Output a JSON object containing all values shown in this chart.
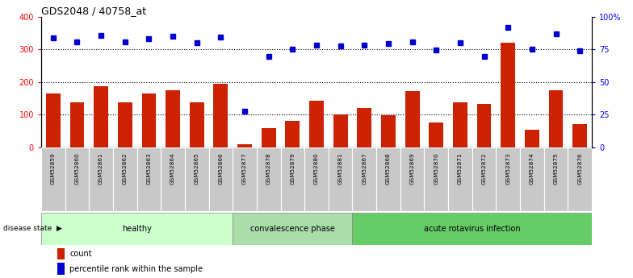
{
  "title": "GDS2048 / 40758_at",
  "samples": [
    "GSM52859",
    "GSM52860",
    "GSM52861",
    "GSM52862",
    "GSM52863",
    "GSM52864",
    "GSM52865",
    "GSM52866",
    "GSM52877",
    "GSM52878",
    "GSM52879",
    "GSM52880",
    "GSM52881",
    "GSM52867",
    "GSM52868",
    "GSM52869",
    "GSM52870",
    "GSM52871",
    "GSM52872",
    "GSM52873",
    "GSM52874",
    "GSM52875",
    "GSM52876"
  ],
  "counts": [
    165,
    137,
    188,
    137,
    165,
    175,
    138,
    195,
    10,
    58,
    82,
    143,
    102,
    120,
    98,
    172,
    77,
    137,
    132,
    320,
    53,
    175,
    72
  ],
  "percentiles": [
    335,
    323,
    343,
    322,
    333,
    340,
    320,
    338,
    110,
    278,
    300,
    313,
    310,
    313,
    318,
    322,
    298,
    320,
    278,
    368,
    300,
    348,
    295
  ],
  "groups": [
    {
      "label": "healthy",
      "start": 0,
      "end": 8,
      "color": "#ccffcc"
    },
    {
      "label": "convalescence phase",
      "start": 8,
      "end": 13,
      "color": "#aaddaa"
    },
    {
      "label": "acute rotavirus infection",
      "start": 13,
      "end": 23,
      "color": "#66cc66"
    }
  ],
  "bar_color": "#cc2200",
  "dot_color": "#0000cc",
  "ylim_left": [
    0,
    400
  ],
  "yticks_left": [
    0,
    100,
    200,
    300,
    400
  ],
  "ytick_labels_right": [
    "0",
    "25",
    "50",
    "75",
    "100%"
  ],
  "grid_values": [
    100,
    200,
    300
  ],
  "tick_bg_color": "#c8c8c8"
}
